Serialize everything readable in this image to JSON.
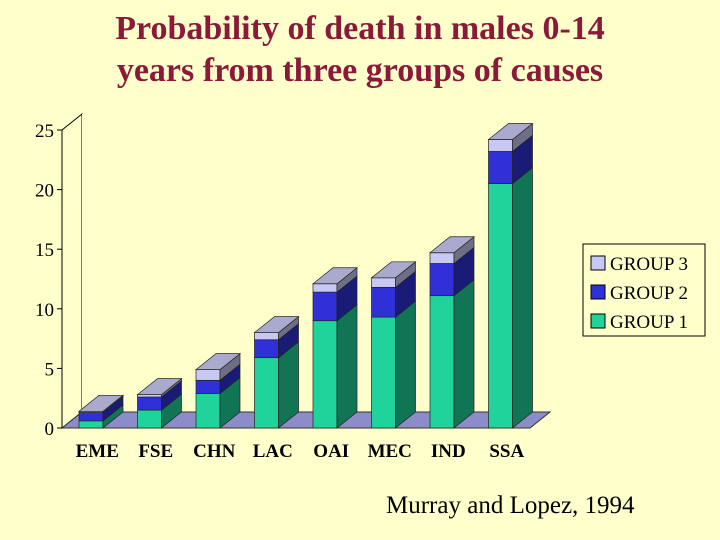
{
  "title": {
    "line1": "Probability of death in males 0-14",
    "line2": "years from three groups of causes"
  },
  "source": "Murray and Lopez, 1994",
  "colors": {
    "background": "#ffffcc",
    "title": "#8b1a3a",
    "group1": "#1fd39a",
    "group2": "#3030d8",
    "group3": "#c8c8f4",
    "floor": "#8c8cc8"
  },
  "chart_data": {
    "type": "bar",
    "stacked": true,
    "three_d": true,
    "categories": [
      "EME",
      "FSE",
      "CHN",
      "LAC",
      "OAI",
      "MEC",
      "IND",
      "SSA"
    ],
    "series": [
      {
        "name": "GROUP 1",
        "values": [
          0.6,
          1.5,
          2.9,
          5.9,
          9.0,
          9.3,
          11.1,
          20.5
        ]
      },
      {
        "name": "GROUP 2",
        "values": [
          0.7,
          1.1,
          1.1,
          1.5,
          2.4,
          2.5,
          2.7,
          2.7
        ]
      },
      {
        "name": "GROUP 3",
        "values": [
          0.1,
          0.2,
          0.9,
          0.6,
          0.7,
          0.8,
          0.9,
          1.0
        ]
      }
    ],
    "yticks": [
      "0",
      "5",
      "10",
      "15",
      "20",
      "25"
    ],
    "ylim": [
      0,
      25
    ],
    "legend": [
      "GROUP 3",
      "GROUP 2",
      "GROUP 1"
    ],
    "legend_position": "right",
    "grid": false
  }
}
